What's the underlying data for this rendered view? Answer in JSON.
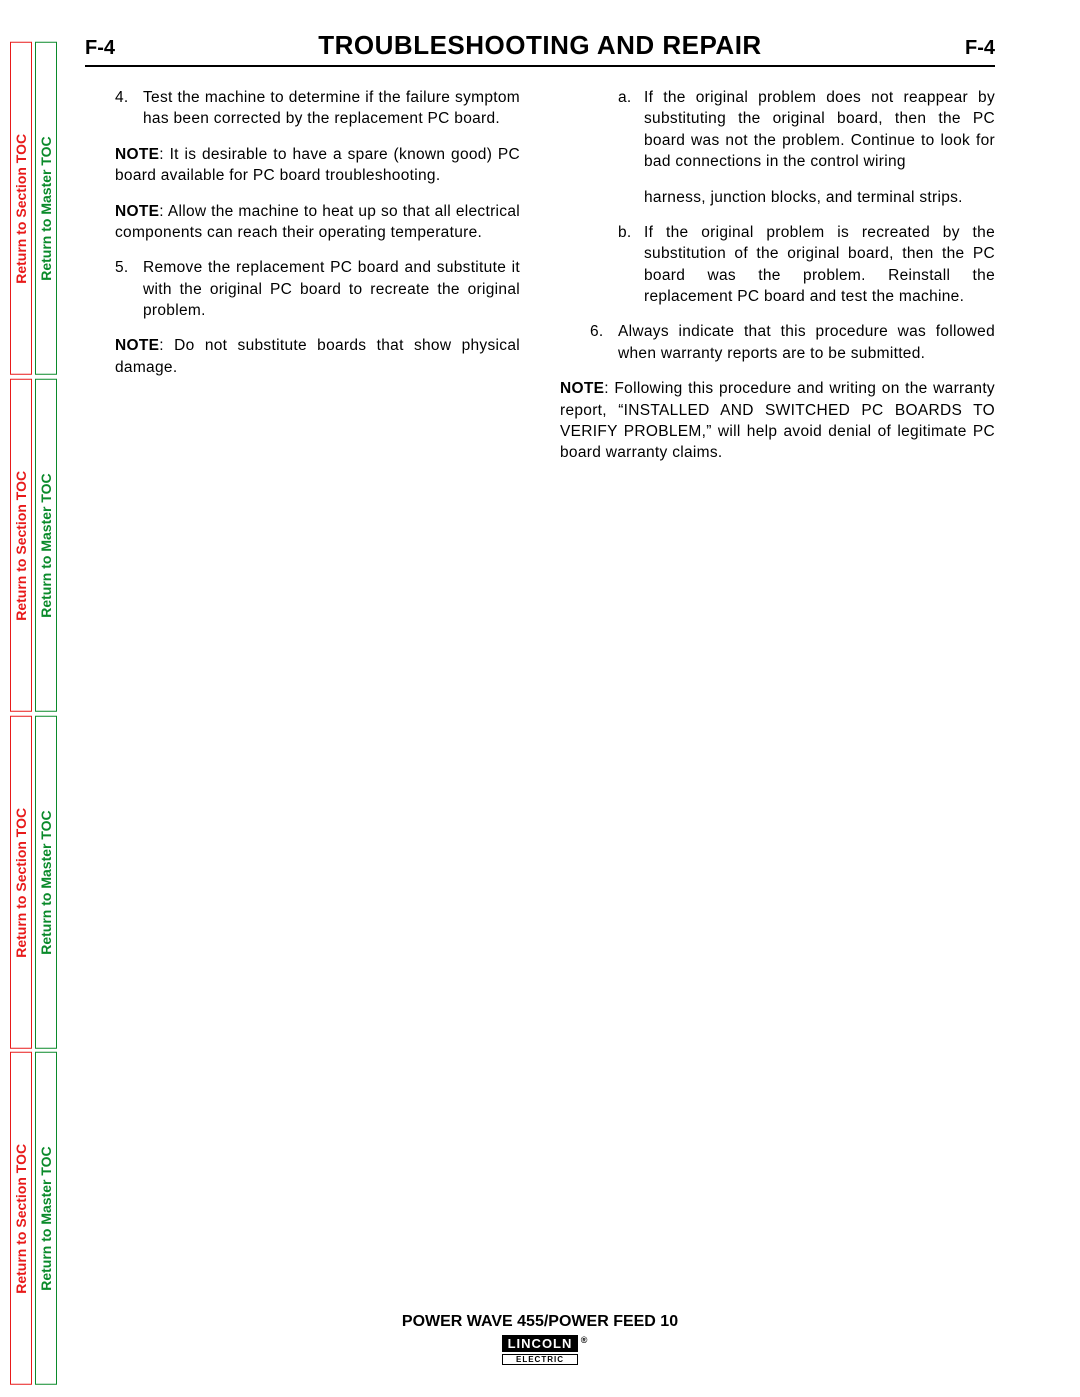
{
  "tabs": {
    "section": "Return to Section TOC",
    "master": "Return to Master TOC"
  },
  "header": {
    "page_left": "F-4",
    "title": "TROUBLESHOOTING AND REPAIR",
    "page_right": "F-4"
  },
  "body": {
    "item4_num": "4.",
    "item4": "Test the machine to determine if the failure symptom has been corrected by the replacement PC board.",
    "note1_label": "NOTE",
    "note1": ": It is desirable to have a spare (known good) PC board available for PC board troubleshooting.",
    "note2_label": "NOTE",
    "note2": ": Allow the machine to heat up so that all electrical components can reach their operating temperature.",
    "item5_num": "5.",
    "item5": "Remove the replacement PC board and substitute it with the original PC board to recreate the original problem.",
    "note3_label": "NOTE",
    "note3": ": Do not substitute boards that show physical damage.",
    "sub_a_num": "a.",
    "sub_a": "If the original problem does not reappear by substituting the original board, then the PC board was not the problem. Continue to look for bad connections in the control wiring",
    "sub_a_cont": "harness, junction blocks, and terminal strips.",
    "sub_b_num": "b.",
    "sub_b": "If the original problem is recreated by the substitution of the original board, then the PC board was the problem. Reinstall the replacement PC board and test the machine.",
    "item6_num": "6.",
    "item6": "Always indicate that this procedure was followed when warranty reports are to be submitted.",
    "note4_label": "NOTE",
    "note4": ": Following this procedure and writing on the warranty report, “INSTALLED AND SWITCHED PC BOARDS TO VERIFY PROBLEM,” will help avoid denial of legitimate PC board warranty claims."
  },
  "footer": {
    "text": "POWER WAVE 455/POWER FEED 10",
    "logo_top": "LINCOLN",
    "logo_r": "®",
    "logo_bot": "ELECTRIC"
  },
  "colors": {
    "red": "#e81a1a",
    "green": "#0a8a2a",
    "black": "#000000"
  }
}
